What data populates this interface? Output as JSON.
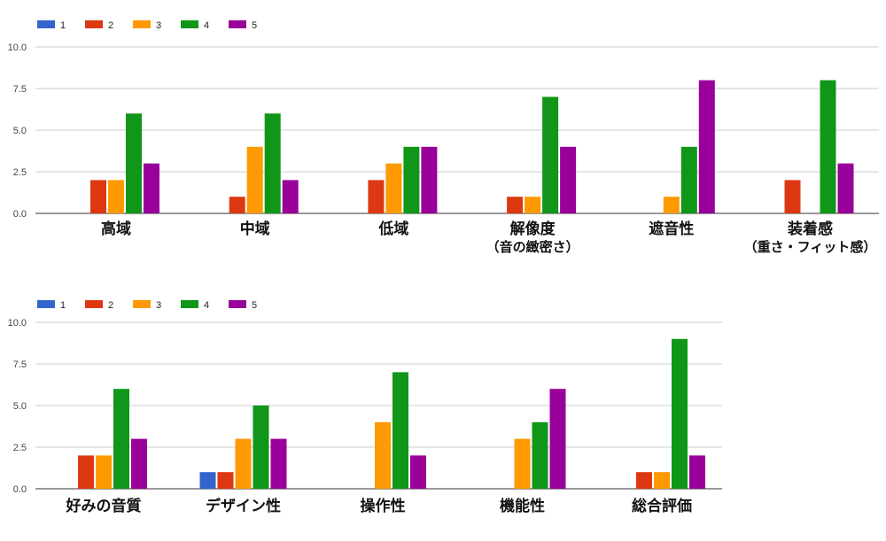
{
  "colors": {
    "1": "#3366cc",
    "2": "#dc3912",
    "3": "#ff9900",
    "4": "#109618",
    "5": "#990099"
  },
  "chart_data": [
    {
      "type": "bar",
      "categories": [
        "高域",
        "中域",
        "低域",
        "解像度（音の緻密さ）",
        "遮音性",
        "装着感（重さ・フィット感）"
      ],
      "category_lines": [
        [
          "高域"
        ],
        [
          "中域"
        ],
        [
          "低域"
        ],
        [
          "解像度",
          "（音の緻密さ）"
        ],
        [
          "遮音性"
        ],
        [
          "装着感",
          "（重さ・フィット感）"
        ]
      ],
      "series": [
        {
          "name": "1",
          "values": [
            0,
            0,
            0,
            0,
            0,
            0
          ]
        },
        {
          "name": "2",
          "values": [
            2,
            1,
            2,
            1,
            0,
            2
          ]
        },
        {
          "name": "3",
          "values": [
            2,
            4,
            3,
            1,
            1,
            0
          ]
        },
        {
          "name": "4",
          "values": [
            6,
            6,
            4,
            7,
            4,
            8
          ]
        },
        {
          "name": "5",
          "values": [
            3,
            2,
            4,
            4,
            8,
            3
          ]
        }
      ],
      "ylim": [
        0,
        10
      ],
      "yticks": [
        "0.0",
        "2.5",
        "5.0",
        "7.5",
        "10.0"
      ],
      "legend_position": "top-left",
      "grid": true
    },
    {
      "type": "bar",
      "categories": [
        "好みの音質",
        "デザイン性",
        "操作性",
        "機能性",
        "総合評価"
      ],
      "category_lines": [
        [
          "好みの音質"
        ],
        [
          "デザイン性"
        ],
        [
          "操作性"
        ],
        [
          "機能性"
        ],
        [
          "総合評価"
        ]
      ],
      "series": [
        {
          "name": "1",
          "values": [
            0,
            1,
            0,
            0,
            0
          ]
        },
        {
          "name": "2",
          "values": [
            2,
            1,
            0,
            0,
            1
          ]
        },
        {
          "name": "3",
          "values": [
            2,
            3,
            4,
            3,
            1
          ]
        },
        {
          "name": "4",
          "values": [
            6,
            5,
            7,
            4,
            9
          ]
        },
        {
          "name": "5",
          "values": [
            3,
            3,
            2,
            6,
            2
          ]
        }
      ],
      "ylim": [
        0,
        10
      ],
      "yticks": [
        "0.0",
        "2.5",
        "5.0",
        "7.5",
        "10.0"
      ],
      "legend_position": "top-left",
      "grid": true
    }
  ]
}
